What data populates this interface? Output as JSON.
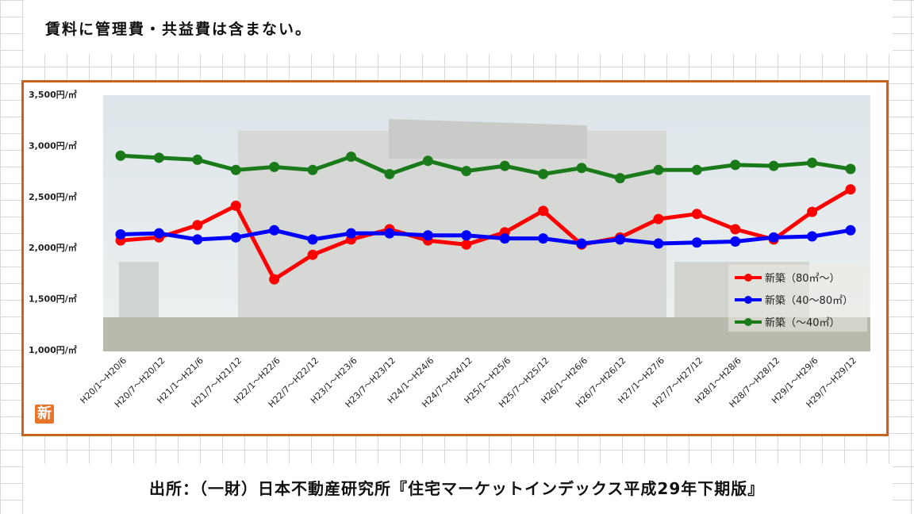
{
  "note": "賃料に管理費・共益費は含まない。",
  "source": "出所：（一財）日本不動産研究所『住宅マーケットインデックス平成29年下期版』",
  "logo_text": "新",
  "colors": {
    "frame": "#c8641e",
    "series_red": "#ff0000",
    "series_blue": "#0000ff",
    "series_green": "#1a7a1a",
    "logo_bg": "#e8742a"
  },
  "chart_data": {
    "type": "line",
    "y_tick_labels": [
      "3,500円/㎡",
      "3,000円/㎡",
      "2,500円/㎡",
      "2,000円/㎡",
      "1,500円/㎡",
      "1,000円/㎡"
    ],
    "y_ticks": [
      3500,
      3000,
      2500,
      2000,
      1500,
      1000
    ],
    "ylim": [
      1000,
      3500
    ],
    "categories": [
      "H20/1～H20/6",
      "H20/7～H20/12",
      "H21/1～H21/6",
      "H21/7～H21/12",
      "H22/1～H22/6",
      "H22/7～H22/12",
      "H23/1～H23/6",
      "H23/7～H23/12",
      "H24/1～H24/6",
      "H24/7～H24/12",
      "H25/1～H25/6",
      "H25/7～H25/12",
      "H26/1～H26/6",
      "H26/7～H26/12",
      "H27/1～H27/6",
      "H27/7～H27/12",
      "H28/1～H28/6",
      "H28/7～H28/12",
      "H29/1～H29/6",
      "H29/7～H29/12"
    ],
    "series": [
      {
        "name": "新築（80㎡～）",
        "color": "#ff0000",
        "values": [
          2070,
          2100,
          2220,
          2410,
          1690,
          1930,
          2080,
          2180,
          2070,
          2030,
          2150,
          2360,
          2030,
          2100,
          2280,
          2330,
          2180,
          2080,
          2350,
          2570
        ]
      },
      {
        "name": "新築（40～80㎡）",
        "color": "#0000ff",
        "values": [
          2130,
          2140,
          2080,
          2100,
          2170,
          2080,
          2140,
          2140,
          2120,
          2120,
          2090,
          2090,
          2040,
          2080,
          2040,
          2050,
          2060,
          2100,
          2110,
          2170
        ]
      },
      {
        "name": "新築（～40㎡）",
        "color": "#1a7a1a",
        "values": [
          2900,
          2880,
          2860,
          2760,
          2790,
          2760,
          2890,
          2720,
          2850,
          2750,
          2800,
          2720,
          2780,
          2680,
          2760,
          2760,
          2810,
          2800,
          2830,
          2770
        ]
      }
    ],
    "legend_position": "right",
    "grid": false
  }
}
